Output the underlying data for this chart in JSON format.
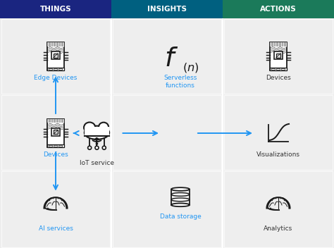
{
  "title_things": "THINGS",
  "title_insights": "INSIGHTS",
  "title_actions": "ACTIONS",
  "header_things_bg": "#1a2580",
  "header_insights_bg": "#006080",
  "header_actions_bg": "#1b7a5a",
  "arrow_color": "#2196f3",
  "icon_color": "#1a1a1a",
  "label_blue": "#2196f3",
  "label_dark": "#333333",
  "panel_bg": "#eeeeee",
  "col_divider": "#cccccc",
  "things_labels": [
    "Edge Devices",
    "Devices",
    "AI services"
  ],
  "insights_labels": [
    "Serverless\nfunctions",
    "Data storage"
  ],
  "actions_labels": [
    "Devices",
    "Visualizations",
    "Analytics"
  ],
  "iot_label": "IoT service",
  "fig_width": 4.74,
  "fig_height": 3.52,
  "dpi": 100
}
